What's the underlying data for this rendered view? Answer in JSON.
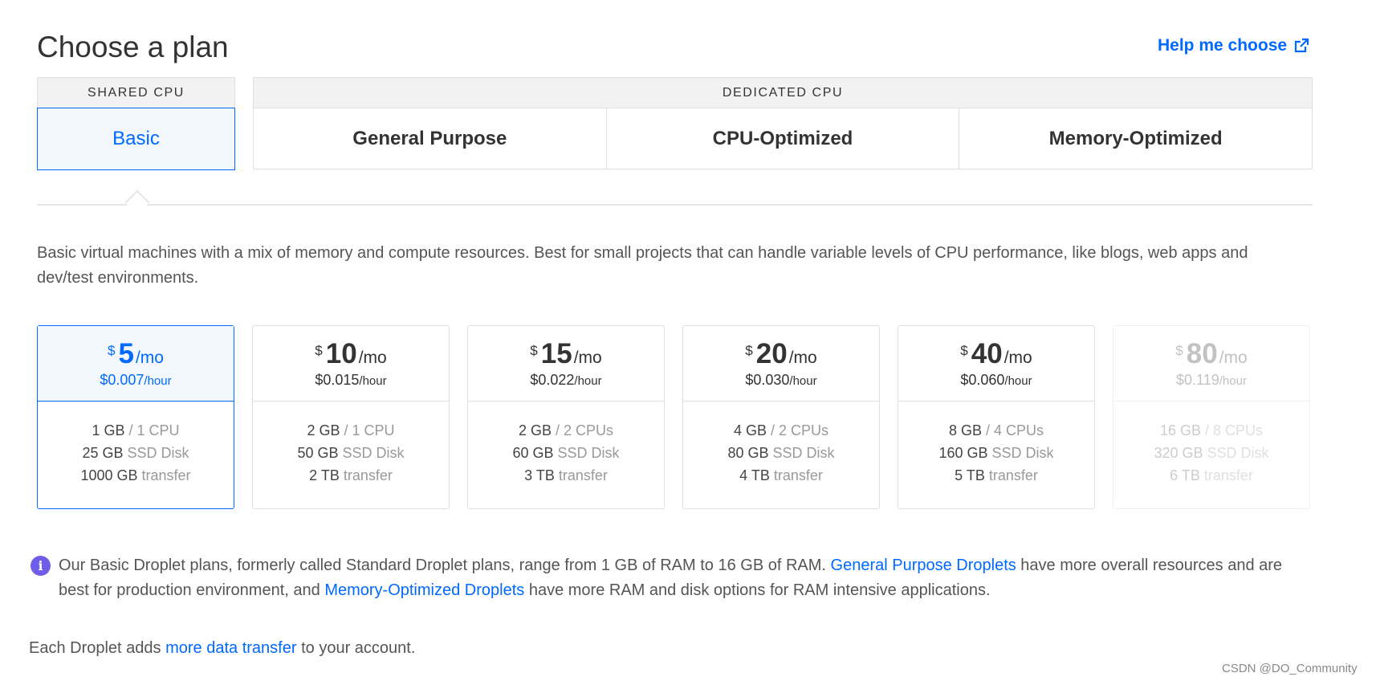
{
  "header": {
    "title": "Choose a plan",
    "help_label": "Help me choose"
  },
  "groups": {
    "shared": {
      "label": "SHARED CPU",
      "tabs": [
        {
          "label": "Basic",
          "selected": true
        }
      ]
    },
    "dedicated": {
      "label": "DEDICATED CPU",
      "tabs": [
        {
          "label": "General Purpose"
        },
        {
          "label": "CPU-Optimized"
        },
        {
          "label": "Memory-Optimized"
        }
      ]
    }
  },
  "description": "Basic virtual machines with a mix of memory and compute resources. Best for small projects that can handle variable levels of CPU performance, like blogs, web apps and dev/test environments.",
  "plans": [
    {
      "currency": "$",
      "amount": "5",
      "per": "/mo",
      "hourly": "$0.007",
      "hourly_unit": "/hour",
      "ram": "1 GB",
      "cpu": " / 1 CPU",
      "disk": "25 GB",
      "disk_type": " SSD Disk",
      "transfer": "1000 GB",
      "transfer_label": " transfer",
      "selected": true
    },
    {
      "currency": "$",
      "amount": "10",
      "per": "/mo",
      "hourly": "$0.015",
      "hourly_unit": "/hour",
      "ram": "2 GB",
      "cpu": " / 1 CPU",
      "disk": "50 GB",
      "disk_type": " SSD Disk",
      "transfer": "2 TB",
      "transfer_label": " transfer"
    },
    {
      "currency": "$",
      "amount": "15",
      "per": "/mo",
      "hourly": "$0.022",
      "hourly_unit": "/hour",
      "ram": "2 GB",
      "cpu": " / 2 CPUs",
      "disk": "60 GB",
      "disk_type": " SSD Disk",
      "transfer": "3 TB",
      "transfer_label": " transfer"
    },
    {
      "currency": "$",
      "amount": "20",
      "per": "/mo",
      "hourly": "$0.030",
      "hourly_unit": "/hour",
      "ram": "4 GB",
      "cpu": " / 2 CPUs",
      "disk": "80 GB",
      "disk_type": " SSD Disk",
      "transfer": "4 TB",
      "transfer_label": " transfer"
    },
    {
      "currency": "$",
      "amount": "40",
      "per": "/mo",
      "hourly": "$0.060",
      "hourly_unit": "/hour",
      "ram": "8 GB",
      "cpu": " / 4 CPUs",
      "disk": "160 GB",
      "disk_type": " SSD Disk",
      "transfer": "5 TB",
      "transfer_label": " transfer"
    },
    {
      "currency": "$",
      "amount": "80",
      "per": "/mo",
      "hourly": "$0.119",
      "hourly_unit": "/hour",
      "ram": "16 GB",
      "cpu": " / 8 CPUs",
      "disk": "320 GB",
      "disk_type": " SSD Disk",
      "transfer": "6 TB",
      "transfer_label": " transfer",
      "disabled": true
    }
  ],
  "info": {
    "icon": "info-icon",
    "text1": "Our Basic Droplet plans, formerly called Standard Droplet plans, range from 1 GB of RAM to 16 GB of RAM. ",
    "link1": "General Purpose Droplets",
    "text2": " have more overall resources and are best for production environment, and ",
    "link2": "Memory-Optimized Droplets",
    "text3": " have more RAM and disk options for RAM intensive applications."
  },
  "footer": {
    "text1": "Each Droplet adds ",
    "link": "more data transfer",
    "text2": " to your account."
  },
  "watermark": "CSDN @DO_Community",
  "colors": {
    "accent": "#0069ff",
    "info_icon": "#6f5ce9",
    "selected_bg": "#f3f8ff"
  }
}
